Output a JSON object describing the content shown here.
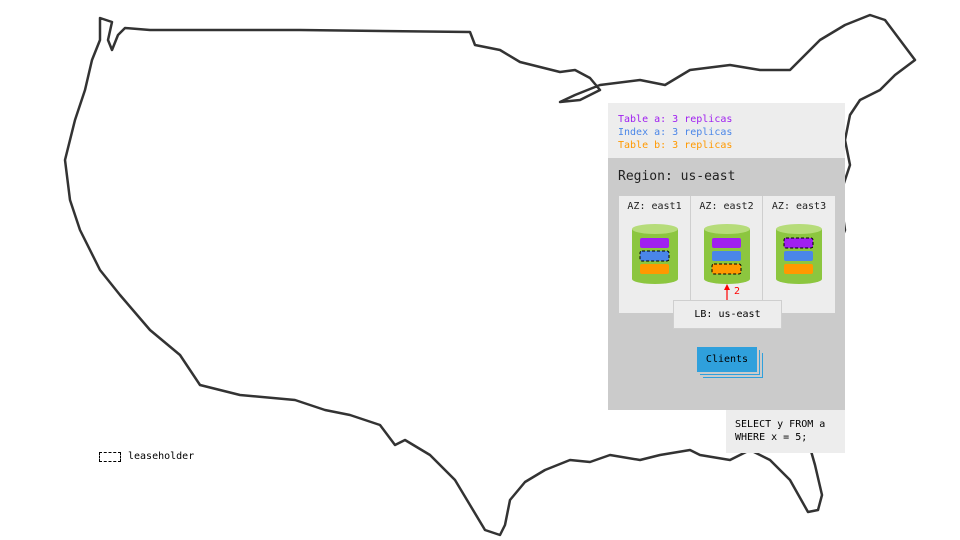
{
  "legend": {
    "lines": [
      {
        "text": "Table a: 3 replicas",
        "color": "#a020f0"
      },
      {
        "text": "Index a: 3 replicas",
        "color": "#4a86e8"
      },
      {
        "text": "Table b: 3 replicas",
        "color": "#ff9900"
      }
    ]
  },
  "region": {
    "title": "Region: us-east"
  },
  "azs": [
    {
      "label": "AZ: east1",
      "leaseholder": "index-a"
    },
    {
      "label": "AZ: east2",
      "leaseholder": "table-b"
    },
    {
      "label": "AZ: east3",
      "leaseholder": "table-a"
    }
  ],
  "arrow_label": "2",
  "lb": {
    "label": "LB: us-east"
  },
  "clients": {
    "label": "Clients"
  },
  "query": {
    "text": "SELECT y FROM a\nWHERE x = 5;"
  },
  "key": {
    "label": "leaseholder"
  },
  "colors": {
    "table_a": "#a020f0",
    "index_a": "#4a86e8",
    "table_b": "#ff9900",
    "node": "#8cc63f",
    "arrow": "#ff0000"
  }
}
